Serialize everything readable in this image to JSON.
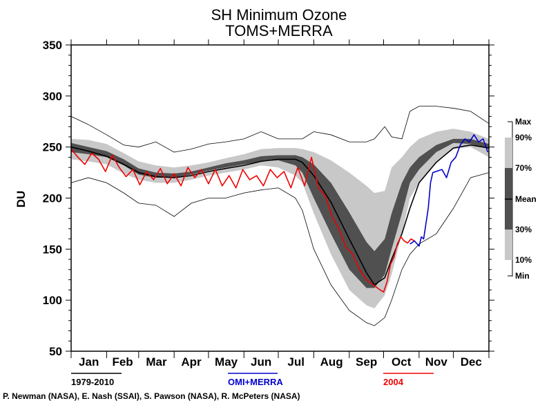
{
  "chart_data": {
    "type": "line",
    "title": "SH Minimum Ozone",
    "subtitle": "TOMS+MERRA",
    "ylabel": "DU",
    "xlabel": "",
    "ylim": [
      50,
      350
    ],
    "yticks": [
      "50",
      "100",
      "150",
      "200",
      "250",
      "300",
      "350"
    ],
    "ytick_values": [
      50,
      100,
      150,
      200,
      250,
      300,
      350
    ],
    "xlim": [
      0,
      365
    ],
    "months": [
      "Jan",
      "Feb",
      "Mar",
      "Apr",
      "May",
      "Jun",
      "Jul",
      "Aug",
      "Sep",
      "Oct",
      "Nov",
      "Dec"
    ],
    "grid": false,
    "x_day": [
      0,
      15,
      31,
      46,
      59,
      74,
      90,
      105,
      120,
      135,
      151,
      166,
      181,
      196,
      202,
      212,
      227,
      243,
      258,
      265,
      274,
      280,
      289,
      296,
      304,
      319,
      334,
      349,
      365
    ],
    "bands": {
      "min": [
        215,
        220,
        215,
        205,
        195,
        193,
        182,
        195,
        200,
        200,
        205,
        208,
        210,
        200,
        188,
        150,
        115,
        90,
        78,
        75,
        83,
        100,
        130,
        145,
        155,
        165,
        190,
        220,
        225
      ],
      "p10": [
        238,
        236,
        233,
        224,
        218,
        215,
        215,
        218,
        222,
        225,
        228,
        232,
        230,
        222,
        215,
        185,
        145,
        110,
        95,
        92,
        105,
        125,
        165,
        200,
        215,
        235,
        248,
        250,
        240
      ],
      "p30": [
        245,
        243,
        240,
        232,
        223,
        220,
        220,
        223,
        227,
        230,
        233,
        236,
        237,
        232,
        225,
        200,
        165,
        130,
        112,
        112,
        125,
        150,
        185,
        215,
        228,
        245,
        254,
        253,
        248
      ],
      "mean": [
        250,
        246,
        241,
        233,
        225,
        221,
        220,
        222,
        226,
        229,
        232,
        236,
        238,
        238,
        235,
        222,
        196,
        160,
        127,
        115,
        122,
        140,
        165,
        190,
        215,
        235,
        249,
        252,
        249
      ],
      "p70": [
        254,
        250,
        246,
        238,
        229,
        225,
        224,
        226,
        230,
        234,
        237,
        241,
        242,
        242,
        240,
        233,
        215,
        186,
        157,
        148,
        160,
        185,
        215,
        230,
        240,
        252,
        258,
        258,
        253
      ],
      "p90": [
        258,
        257,
        253,
        244,
        236,
        232,
        230,
        232,
        235,
        239,
        243,
        248,
        249,
        249,
        248,
        245,
        237,
        225,
        212,
        205,
        207,
        230,
        240,
        250,
        258,
        265,
        268,
        265,
        258
      ],
      "max": [
        280,
        272,
        262,
        252,
        250,
        255,
        245,
        248,
        253,
        255,
        258,
        265,
        258,
        258,
        258,
        265,
        262,
        255,
        255,
        258,
        270,
        260,
        258,
        285,
        290,
        290,
        288,
        285,
        273
      ]
    },
    "series": [
      {
        "name": "2004",
        "color": "#ee0000",
        "x": [
          0,
          6,
          12,
          18,
          24,
          30,
          36,
          42,
          48,
          54,
          60,
          66,
          72,
          78,
          84,
          90,
          96,
          102,
          108,
          114,
          120,
          126,
          132,
          138,
          144,
          150,
          156,
          162,
          168,
          174,
          180,
          186,
          192,
          198,
          204,
          210,
          216,
          222,
          228,
          234,
          240,
          246,
          252,
          258,
          264,
          270,
          273,
          276,
          279,
          282,
          285,
          288,
          291,
          294,
          297,
          300
        ],
        "y": [
          248,
          240,
          233,
          244,
          238,
          226,
          242,
          230,
          221,
          228,
          213,
          226,
          218,
          229,
          214,
          224,
          212,
          230,
          220,
          228,
          214,
          228,
          212,
          222,
          210,
          228,
          218,
          222,
          212,
          228,
          220,
          226,
          210,
          230,
          212,
          240,
          210,
          202,
          182,
          170,
          152,
          145,
          130,
          120,
          115,
          110,
          108,
          118,
          135,
          142,
          155,
          162,
          158,
          156,
          160,
          158
        ]
      },
      {
        "name": "OMI+MERRA",
        "color": "#0000cc",
        "x": [
          296,
          300,
          304,
          306,
          308,
          312,
          314,
          316,
          324,
          328,
          332,
          336,
          340,
          344,
          348,
          352,
          356,
          360,
          364
        ],
        "y": [
          155,
          158,
          153,
          162,
          160,
          190,
          215,
          225,
          228,
          220,
          235,
          240,
          252,
          258,
          255,
          262,
          255,
          258,
          245
        ]
      }
    ]
  },
  "legend": {
    "climatology_label": "1979-2010",
    "climatology_color": "#000000",
    "omi_label": "OMI+MERRA",
    "omi_color": "#0000cc",
    "year_label": "2004",
    "year_color": "#ee0000"
  },
  "percentile_key": {
    "max_label": "Max",
    "p90_label": "90%",
    "p70_label": "70%",
    "mean_label": "Mean",
    "p30_label": "30%",
    "p10_label": "10%",
    "min_label": "Min",
    "light_color": "#c8c8c8",
    "dark_color": "#505050"
  },
  "credits": "P. Newman (NASA), E. Nash (SSAI), S. Pawson (NASA), R. McPeters (NASA)"
}
